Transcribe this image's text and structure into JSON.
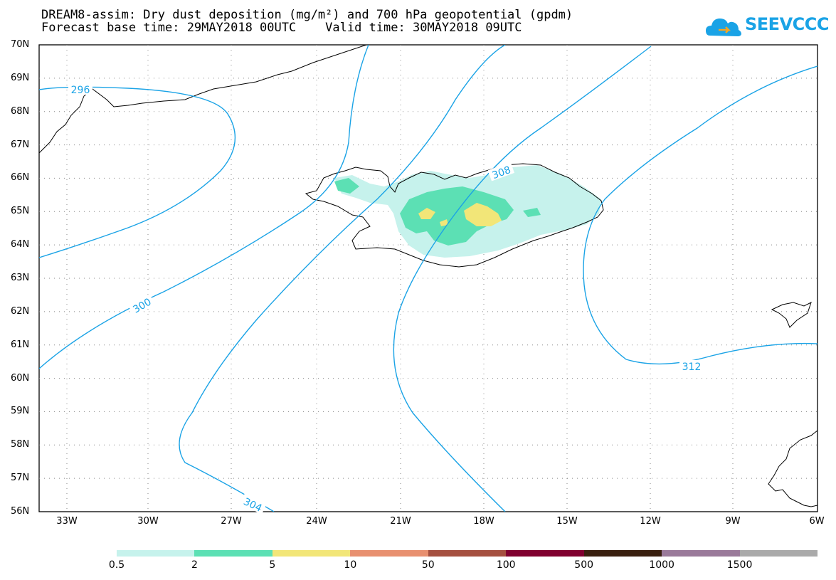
{
  "title": {
    "line1": "DREAM8-assim: Dry dust deposition (mg/m²) and 700 hPa geopotential (gpdm)",
    "line2": "Forecast base time: 29MAY2018 00UTC    Valid time: 30MAY2018 09UTC"
  },
  "logo": {
    "text": "SEEVCCC",
    "icon": "cloud-logo-icon",
    "color": "#1aa3e6"
  },
  "axes": {
    "lat_labels": [
      "70N",
      "69N",
      "68N",
      "67N",
      "66N",
      "65N",
      "64N",
      "63N",
      "62N",
      "61N",
      "60N",
      "59N",
      "58N",
      "57N",
      "56N"
    ],
    "lon_labels": [
      "33W",
      "30W",
      "27W",
      "24W",
      "21W",
      "18W",
      "15W",
      "12W",
      "9W",
      "6W"
    ]
  },
  "contours": {
    "color": "#1aa3e6",
    "labels": [
      "296",
      "300",
      "304",
      "308",
      "312"
    ]
  },
  "legend": {
    "colors": [
      "#c6f2ec",
      "#5ce0b4",
      "#f2e678",
      "#e89070",
      "#a55040",
      "#800030",
      "#3a2010",
      "#9a7a9a",
      "#aaaaaa"
    ],
    "labels": [
      "0.5",
      "2",
      "5",
      "10",
      "50",
      "100",
      "500",
      "1000",
      "1500"
    ]
  }
}
